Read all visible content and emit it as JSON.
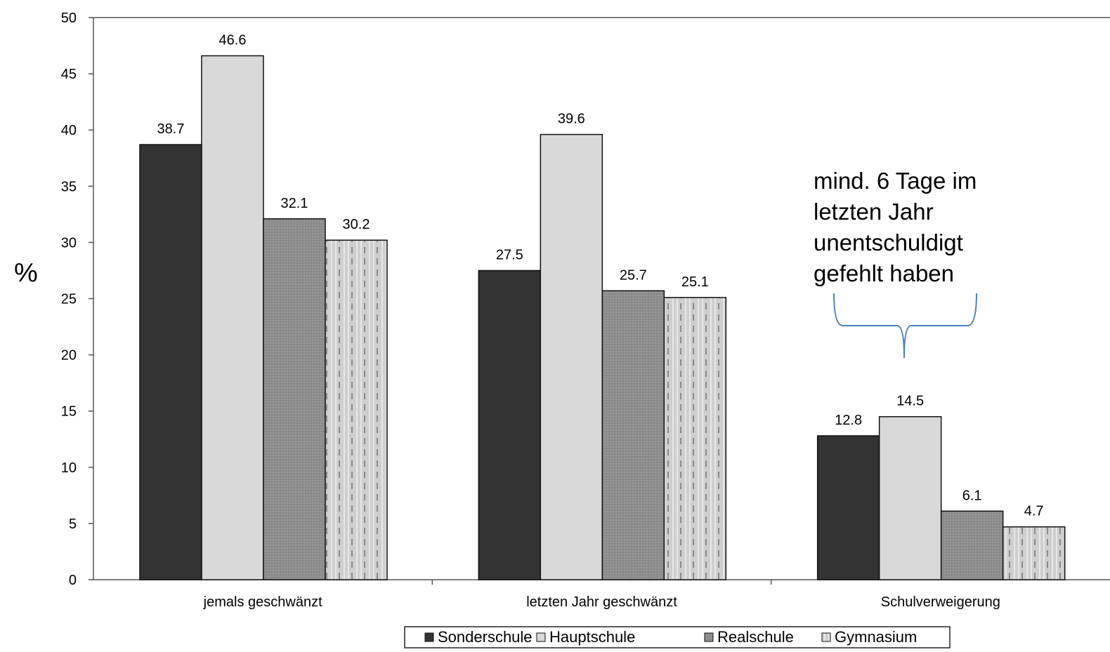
{
  "chart_data": {
    "type": "bar",
    "categories": [
      "jemals geschwänzt",
      "letzten Jahr geschwänzt",
      "Schulverweigerung"
    ],
    "series": [
      {
        "name": "Sonderschule",
        "values": [
          38.7,
          27.5,
          12.8
        ],
        "color": "#333333"
      },
      {
        "name": "Hauptschule",
        "values": [
          46.6,
          39.6,
          14.5
        ],
        "color": "#d9d9d9"
      },
      {
        "name": "Realschule",
        "values": [
          32.1,
          25.7,
          6.1
        ],
        "color": "#8c8c8c"
      },
      {
        "name": "Gymnasium",
        "values": [
          30.2,
          25.1,
          4.7
        ],
        "color": "#c4c4c4"
      }
    ],
    "data_labels": [
      [
        "38.7",
        "27.5",
        "12.8"
      ],
      [
        "46.6",
        "39.6",
        "14.5"
      ],
      [
        "32.1",
        "25.7",
        "6.1"
      ],
      [
        "30.2",
        "25.1",
        "4.7"
      ]
    ],
    "ylabel": "%",
    "ylim": [
      0,
      50
    ],
    "yticks": [
      "0",
      "5",
      "10",
      "15",
      "20",
      "25",
      "30",
      "35",
      "40",
      "45",
      "50"
    ],
    "legend_placement": "bottom-center",
    "grid": false,
    "annotation": {
      "text": "mind. 6 Tage im letzten Jahr unentschuldigt gefehlt haben",
      "target_category": "Schulverweigerung",
      "brace_color": "#4f81bd"
    }
  }
}
